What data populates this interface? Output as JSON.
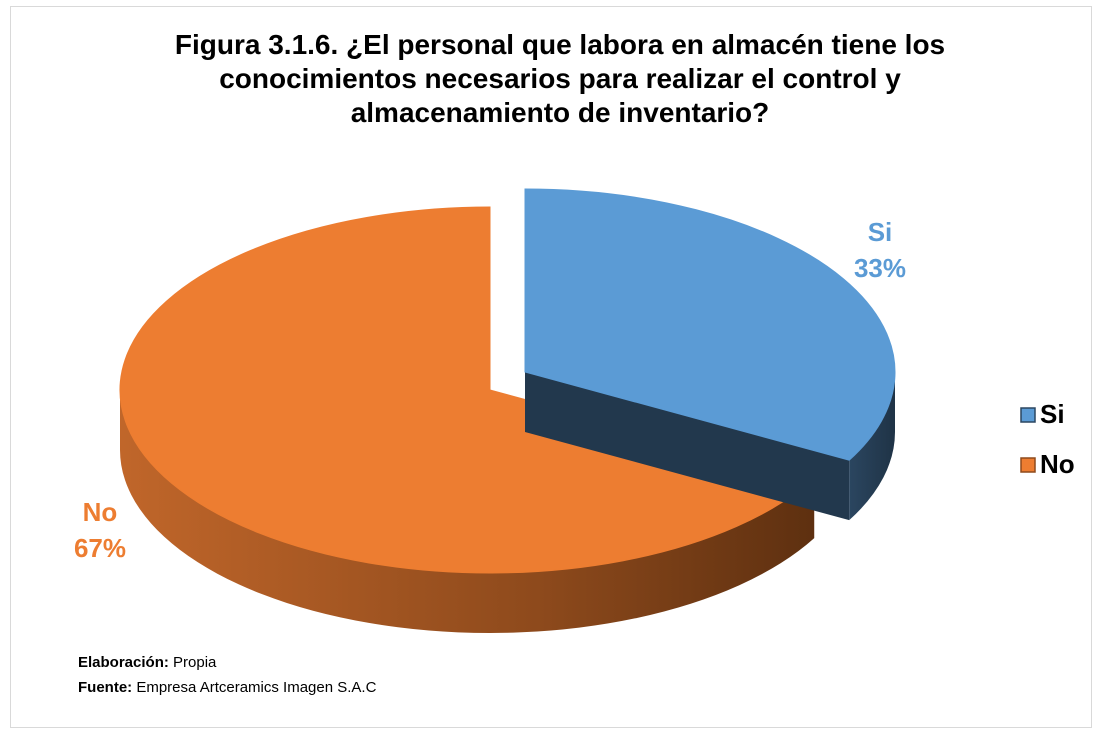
{
  "chart_data": {
    "type": "pie",
    "title": "Figura 3.1.6. ¿El personal que labora en almacén tiene los conocimientos necesarios para realizar el control y almacenamiento de inventario?",
    "categories": [
      "Si",
      "No"
    ],
    "values": [
      33,
      67
    ],
    "value_labels": [
      "33%",
      "67%"
    ],
    "colors": [
      "#5b9bd5",
      "#ed7d31"
    ],
    "legend": "right",
    "notes": [
      {
        "label": "Elaboración:",
        "text": "Propia"
      },
      {
        "label": "Fuente:",
        "text": "Empresa Artceramics Imagen S.A.C"
      }
    ]
  }
}
